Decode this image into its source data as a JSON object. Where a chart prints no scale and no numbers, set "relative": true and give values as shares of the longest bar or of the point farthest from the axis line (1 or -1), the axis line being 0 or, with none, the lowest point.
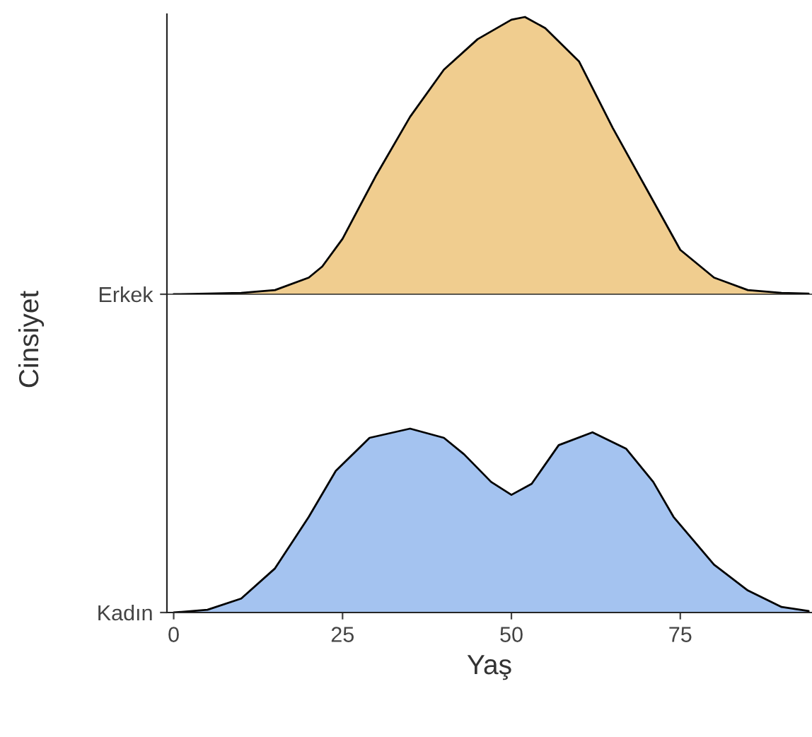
{
  "chart_data": [
    {
      "type": "area",
      "relative": true,
      "ylabel": "Cinsiyet",
      "xlim": [
        -1,
        94.5
      ],
      "tick_labels": "y",
      "grid": false,
      "legend": false,
      "series": [
        {
          "name": "Erkek",
          "color": "#f0cd8f",
          "x": [
            0,
            5,
            10,
            15,
            20,
            22,
            25,
            30,
            35,
            40,
            45,
            50,
            52,
            55,
            60,
            65,
            70,
            75,
            80,
            85,
            90,
            94
          ],
          "values": [
            0,
            0.002,
            0.005,
            0.015,
            0.06,
            0.1,
            0.2,
            0.43,
            0.64,
            0.81,
            0.92,
            0.99,
            1.0,
            0.96,
            0.84,
            0.6,
            0.38,
            0.16,
            0.06,
            0.015,
            0.005,
            0.002
          ]
        }
      ]
    },
    {
      "type": "area",
      "relative": true,
      "xlabel": "Yaş",
      "xlim": [
        -1,
        94.5
      ],
      "xticks": [
        0,
        25,
        50,
        75
      ],
      "grid": false,
      "legend": false,
      "series": [
        {
          "name": "Kadın",
          "color": "#a4c3f0",
          "x": [
            0,
            5,
            10,
            15,
            20,
            24,
            29,
            35,
            40,
            43,
            47,
            50,
            53,
            57,
            62,
            67,
            71,
            74,
            80,
            85,
            90,
            94
          ],
          "values": [
            0,
            0.015,
            0.076,
            0.24,
            0.52,
            0.77,
            0.95,
            1.0,
            0.95,
            0.86,
            0.71,
            0.64,
            0.7,
            0.91,
            0.98,
            0.89,
            0.71,
            0.52,
            0.26,
            0.12,
            0.03,
            0.008
          ]
        }
      ]
    }
  ]
}
